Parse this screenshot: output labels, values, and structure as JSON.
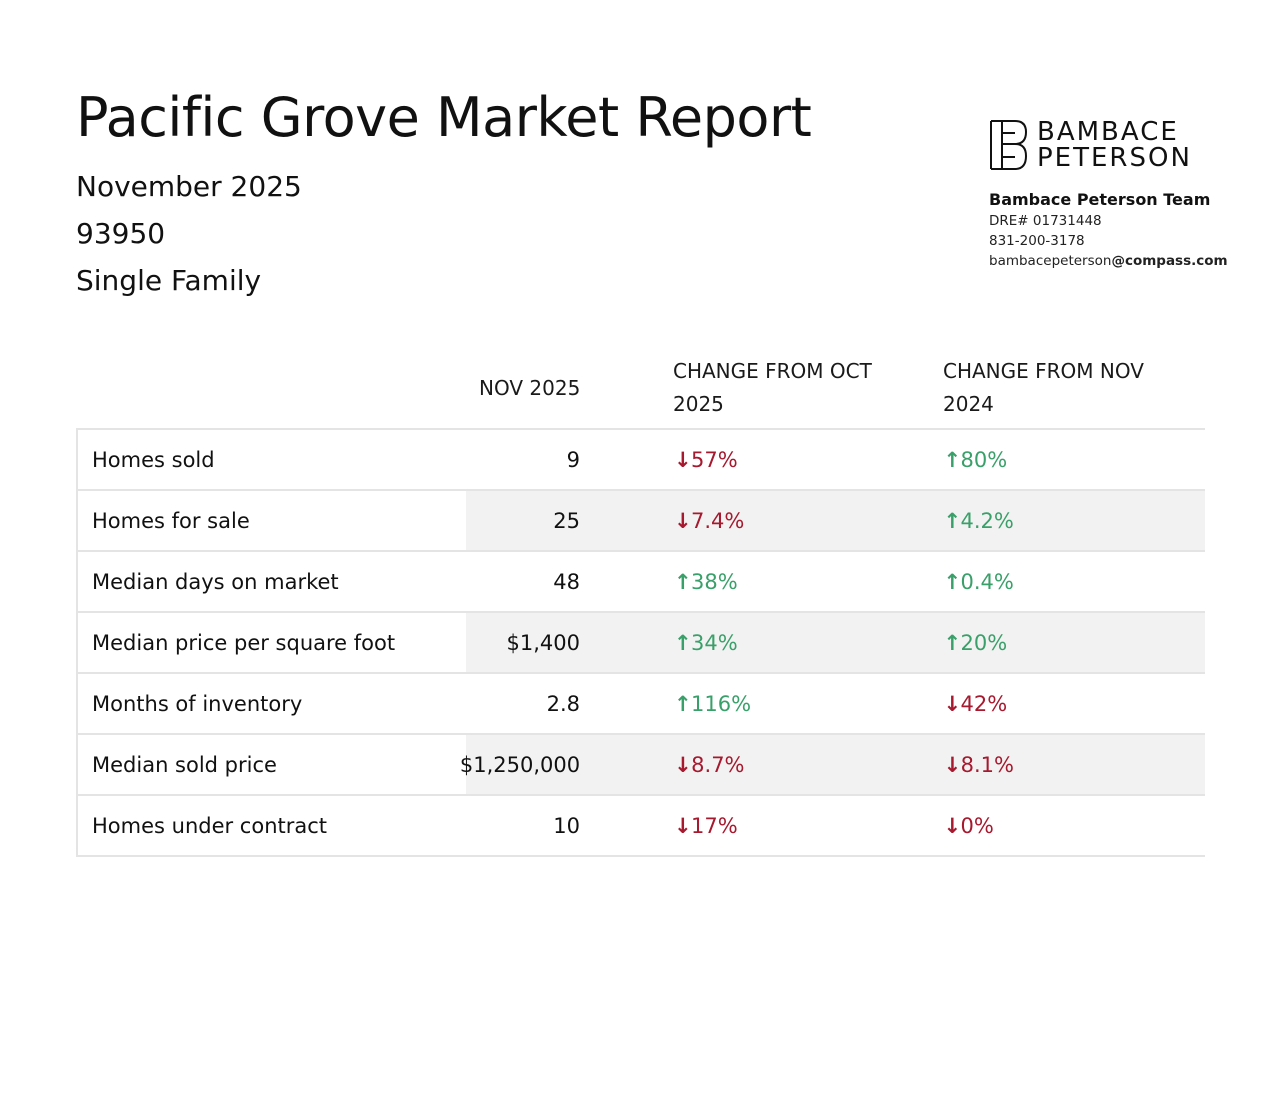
{
  "header": {
    "title": "Pacific Grove Market Report",
    "month": "November 2025",
    "zip": "93950",
    "property_type": "Single Family"
  },
  "brand": {
    "logo_line1": "BAMBACE",
    "logo_line2": "PETERSON",
    "team_name": "Bambace Peterson Team",
    "dre": "DRE# 01731448",
    "phone": "831-200-3178",
    "email_user": "bambacepeterson",
    "email_domain": "@compass.com"
  },
  "table": {
    "headers": {
      "label": "",
      "value": "NOV 2025",
      "oct_line1": "CHANGE FROM OCT",
      "oct_line2": "2025",
      "yoy_line1": "CHANGE FROM NOV",
      "yoy_line2": "2024"
    },
    "rows": [
      {
        "label": "Homes sold",
        "value": "9",
        "oct": "57%",
        "oct_dir": "down",
        "yoy": "80%",
        "yoy_dir": "up"
      },
      {
        "label": "Homes for sale",
        "value": "25",
        "oct": "7.4%",
        "oct_dir": "down",
        "yoy": "4.2%",
        "yoy_dir": "up"
      },
      {
        "label": "Median days on market",
        "value": "48",
        "oct": "38%",
        "oct_dir": "up",
        "yoy": "0.4%",
        "yoy_dir": "up"
      },
      {
        "label": "Median price per square foot",
        "value": "$1,400",
        "oct": "34%",
        "oct_dir": "up",
        "yoy": "20%",
        "yoy_dir": "up"
      },
      {
        "label": "Months of inventory",
        "value": "2.8",
        "oct": "116%",
        "oct_dir": "up",
        "yoy": "42%",
        "yoy_dir": "down"
      },
      {
        "label": "Median sold price",
        "value": "$1,250,000",
        "oct": "8.7%",
        "oct_dir": "down",
        "yoy": "8.1%",
        "yoy_dir": "down"
      },
      {
        "label": "Homes under contract",
        "value": "10",
        "oct": "17%",
        "oct_dir": "down",
        "yoy": "0%",
        "yoy_dir": "down"
      }
    ]
  },
  "colors": {
    "up": "#3aa06a",
    "down": "#a6192e",
    "shade": "#f2f2f2"
  },
  "icons": {
    "up": "arrow-up-icon",
    "down": "arrow-down-icon"
  }
}
